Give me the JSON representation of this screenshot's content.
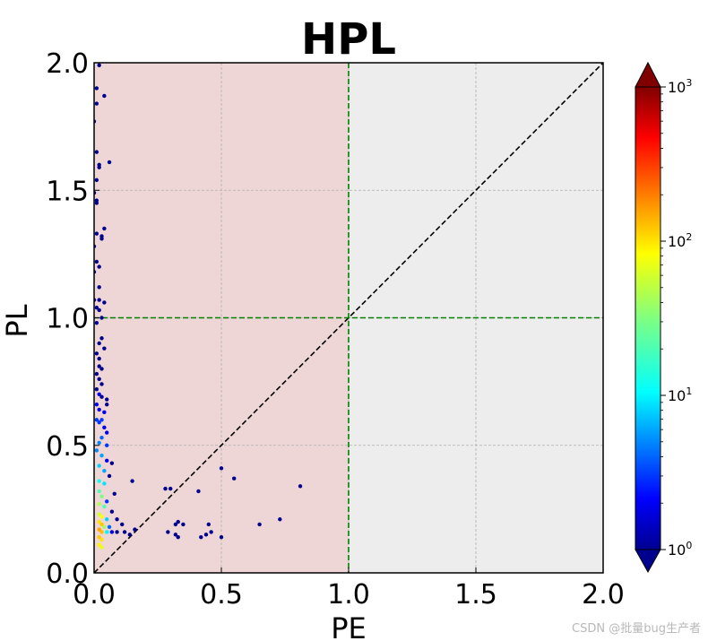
{
  "chart_data": {
    "type": "scatter",
    "title": "HPL",
    "xlabel": "PE",
    "ylabel": "PL",
    "xlim": [
      0,
      2
    ],
    "ylim": [
      0,
      2
    ],
    "xticks": [
      "0.0",
      "0.5",
      "1.0",
      "1.5",
      "2.0"
    ],
    "yticks": [
      "0.0",
      "0.5",
      "1.0",
      "1.5",
      "2.0"
    ],
    "grid": true,
    "reference_lines": [
      {
        "kind": "diagonal",
        "from": [
          0,
          0
        ],
        "to": [
          2,
          2
        ],
        "style": "dashed",
        "color": "#000000"
      },
      {
        "kind": "vertical",
        "x": 1.0,
        "style": "dashed",
        "color": "#008000"
      },
      {
        "kind": "horizontal",
        "y": 1.0,
        "style": "dashed",
        "color": "#008000"
      }
    ],
    "regions": [
      {
        "x": [
          0,
          1
        ],
        "y": [
          0,
          2
        ],
        "color": "#eed5d6"
      },
      {
        "x": [
          1,
          2
        ],
        "y": [
          0,
          2
        ],
        "color": "#ededed"
      }
    ],
    "colorbar": {
      "scale": "log",
      "colormap": "jet",
      "range": [
        1,
        1000
      ],
      "ticks": [
        {
          "value": 1,
          "label": "10^0"
        },
        {
          "value": 10,
          "label": "10^1"
        },
        {
          "value": 100,
          "label": "10^2"
        },
        {
          "value": 1000,
          "label": "10^3"
        }
      ],
      "extend": "both"
    },
    "points": [
      [
        0.02,
        1.99,
        1
      ],
      [
        0.01,
        1.9,
        1
      ],
      [
        0.04,
        1.87,
        1
      ],
      [
        0.01,
        1.84,
        1
      ],
      [
        0.0,
        1.77,
        1
      ],
      [
        0.01,
        1.65,
        1
      ],
      [
        0.02,
        1.6,
        1
      ],
      [
        0.02,
        1.59,
        1
      ],
      [
        0.06,
        1.61,
        1
      ],
      [
        0.01,
        1.54,
        1
      ],
      [
        0.0,
        1.49,
        1
      ],
      [
        0.01,
        1.46,
        1
      ],
      [
        0.01,
        1.45,
        1
      ],
      [
        0.04,
        1.35,
        1
      ],
      [
        0.01,
        1.33,
        1
      ],
      [
        0.03,
        1.32,
        1
      ],
      [
        0.03,
        1.31,
        1
      ],
      [
        0.0,
        1.28,
        1
      ],
      [
        0.01,
        1.22,
        1
      ],
      [
        0.02,
        1.2,
        1
      ],
      [
        0.0,
        1.18,
        1
      ],
      [
        0.02,
        1.12,
        1
      ],
      [
        0.0,
        1.07,
        1
      ],
      [
        0.02,
        1.07,
        1
      ],
      [
        0.04,
        1.06,
        1
      ],
      [
        0.01,
        1.04,
        1
      ],
      [
        0.02,
        1.03,
        1
      ],
      [
        0.03,
        1.0,
        1
      ],
      [
        0.01,
        0.98,
        1
      ],
      [
        0.03,
        0.92,
        1
      ],
      [
        0.02,
        0.9,
        1
      ],
      [
        0.04,
        0.88,
        1
      ],
      [
        0.01,
        0.86,
        1
      ],
      [
        0.02,
        0.84,
        1
      ],
      [
        0.02,
        0.81,
        1
      ],
      [
        0.03,
        0.8,
        1
      ],
      [
        0.01,
        0.78,
        1
      ],
      [
        0.02,
        0.76,
        1
      ],
      [
        0.03,
        0.74,
        1
      ],
      [
        0.01,
        0.72,
        1
      ],
      [
        0.02,
        0.7,
        2
      ],
      [
        0.03,
        0.69,
        1
      ],
      [
        0.05,
        0.68,
        1
      ],
      [
        0.01,
        0.66,
        2
      ],
      [
        0.02,
        0.64,
        2
      ],
      [
        0.05,
        0.66,
        1
      ],
      [
        0.04,
        0.63,
        2
      ],
      [
        0.03,
        0.6,
        3
      ],
      [
        0.01,
        0.6,
        3
      ],
      [
        0.02,
        0.59,
        3
      ],
      [
        0.04,
        0.57,
        2
      ],
      [
        0.05,
        0.55,
        2
      ],
      [
        0.03,
        0.53,
        4
      ],
      [
        0.02,
        0.51,
        5
      ],
      [
        0.05,
        0.5,
        3
      ],
      [
        0.01,
        0.48,
        5
      ],
      [
        0.03,
        0.46,
        6
      ],
      [
        0.05,
        0.44,
        2
      ],
      [
        0.07,
        0.43,
        1
      ],
      [
        0.02,
        0.42,
        8
      ],
      [
        0.04,
        0.4,
        6
      ],
      [
        0.06,
        0.38,
        1
      ],
      [
        0.02,
        0.36,
        12
      ],
      [
        0.04,
        0.35,
        9
      ],
      [
        0.08,
        0.31,
        1
      ],
      [
        0.02,
        0.32,
        20
      ],
      [
        0.03,
        0.3,
        30
      ],
      [
        0.05,
        0.28,
        3
      ],
      [
        0.02,
        0.27,
        45
      ],
      [
        0.04,
        0.26,
        20
      ],
      [
        0.07,
        0.24,
        1
      ],
      [
        0.02,
        0.23,
        60
      ],
      [
        0.03,
        0.22,
        80
      ],
      [
        0.05,
        0.21,
        8
      ],
      [
        0.09,
        0.21,
        1
      ],
      [
        0.02,
        0.2,
        100
      ],
      [
        0.03,
        0.19,
        120
      ],
      [
        0.04,
        0.18,
        40
      ],
      [
        0.06,
        0.18,
        4
      ],
      [
        0.11,
        0.19,
        1
      ],
      [
        0.02,
        0.17,
        150
      ],
      [
        0.03,
        0.16,
        130
      ],
      [
        0.05,
        0.16,
        10
      ],
      [
        0.07,
        0.16,
        2
      ],
      [
        0.09,
        0.16,
        1
      ],
      [
        0.12,
        0.16,
        1
      ],
      [
        0.14,
        0.15,
        1
      ],
      [
        0.16,
        0.17,
        1
      ],
      [
        0.02,
        0.14,
        120
      ],
      [
        0.03,
        0.13,
        100
      ],
      [
        0.02,
        0.11,
        90
      ],
      [
        0.03,
        0.1,
        70
      ],
      [
        0.15,
        0.36,
        1
      ],
      [
        0.28,
        0.33,
        1
      ],
      [
        0.3,
        0.33,
        1
      ],
      [
        0.41,
        0.32,
        1
      ],
      [
        0.5,
        0.41,
        1
      ],
      [
        0.55,
        0.37,
        1
      ],
      [
        0.81,
        0.34,
        1
      ],
      [
        0.73,
        0.21,
        1
      ],
      [
        0.65,
        0.19,
        1
      ],
      [
        0.32,
        0.19,
        1
      ],
      [
        0.35,
        0.19,
        1
      ],
      [
        0.33,
        0.2,
        1
      ],
      [
        0.29,
        0.16,
        1
      ],
      [
        0.32,
        0.15,
        1
      ],
      [
        0.33,
        0.14,
        1
      ],
      [
        0.45,
        0.19,
        1
      ],
      [
        0.46,
        0.16,
        1
      ],
      [
        0.42,
        0.14,
        1
      ],
      [
        0.44,
        0.15,
        1
      ],
      [
        0.5,
        0.14,
        1
      ]
    ]
  },
  "watermark": "CSDN @批量bug生产者"
}
